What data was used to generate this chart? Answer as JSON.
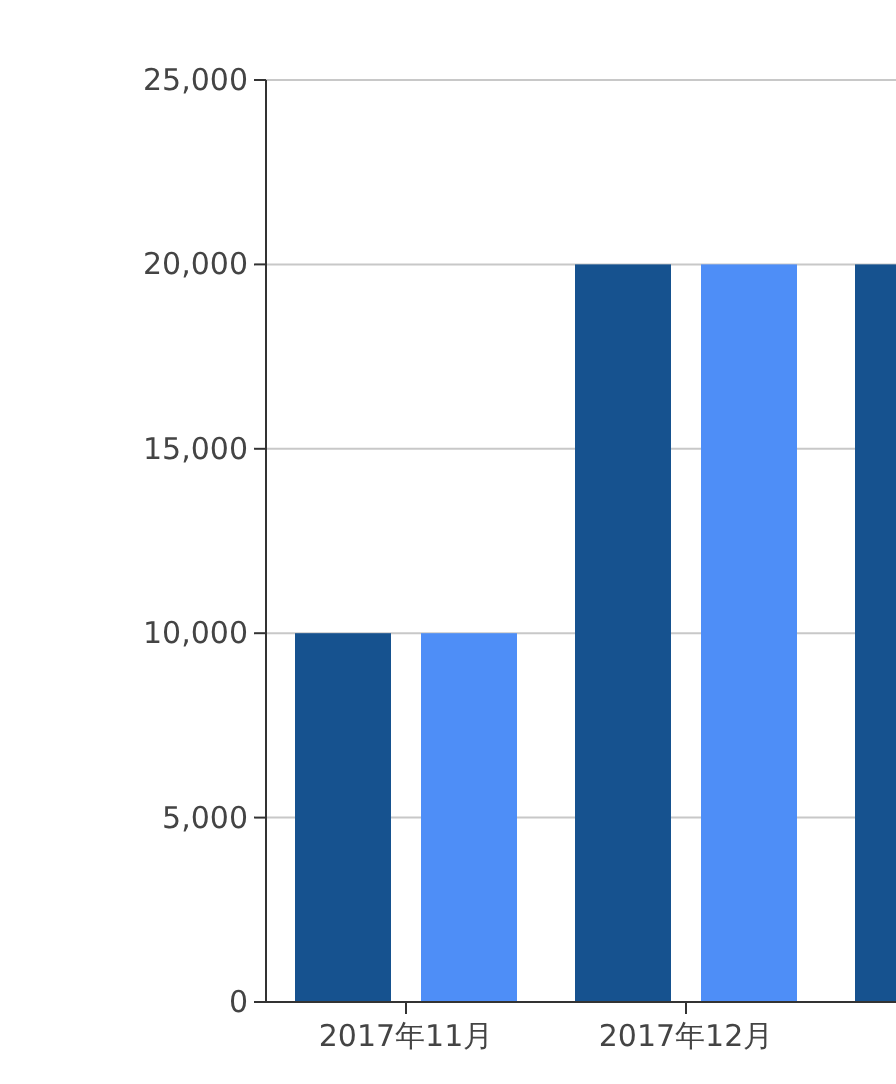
{
  "chart_data": {
    "type": "bar",
    "categories": [
      "2017年11月",
      "2017年12月",
      null
    ],
    "series": [
      {
        "color": "#16528f",
        "values": [
          10000,
          20000,
          20000
        ]
      },
      {
        "color": "#4e8ef7",
        "values": [
          10000,
          20000,
          null
        ]
      }
    ],
    "ylim": [
      0,
      25000
    ],
    "yticks": [
      {
        "value": 0,
        "label": "0"
      },
      {
        "value": 5000,
        "label": "5,000"
      },
      {
        "value": 10000,
        "label": "10,000"
      },
      {
        "value": 15000,
        "label": "15,000"
      },
      {
        "value": 20000,
        "label": "20,000"
      },
      {
        "value": 25000,
        "label": "25,000"
      }
    ],
    "grid": "y"
  }
}
